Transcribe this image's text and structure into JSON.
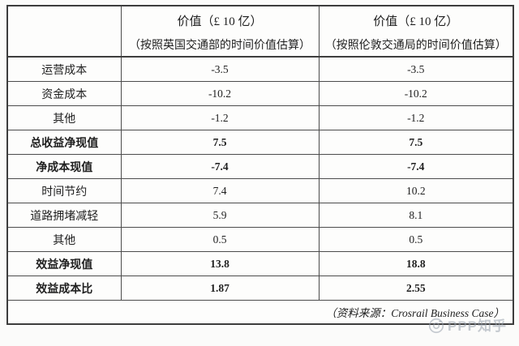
{
  "table": {
    "header": {
      "col_label": "",
      "col_dft": {
        "line1": "价值（£ 10 亿）",
        "line2": "（按照英国交通部的时间价值估算）"
      },
      "col_tfl": {
        "line1": "价值（£ 10 亿）",
        "line2": "（按照伦敦交通局的时间价值估算）"
      }
    },
    "rows": [
      {
        "label": "运营成本",
        "dft": "-3.5",
        "tfl": "-3.5",
        "bold": false
      },
      {
        "label": "资金成本",
        "dft": "-10.2",
        "tfl": "-10.2",
        "bold": false
      },
      {
        "label": "其他",
        "dft": "-1.2",
        "tfl": "-1.2",
        "bold": false
      },
      {
        "label": "总收益净现值",
        "dft": "7.5",
        "tfl": "7.5",
        "bold": true
      },
      {
        "label": "净成本现值",
        "dft": "-7.4",
        "tfl": "-7.4",
        "bold": true
      },
      {
        "label": "时间节约",
        "dft": "7.4",
        "tfl": "10.2",
        "bold": false
      },
      {
        "label": "道路拥堵减轻",
        "dft": "5.9",
        "tfl": "8.1",
        "bold": false
      },
      {
        "label": "其他",
        "dft": "0.5",
        "tfl": "0.5",
        "bold": false
      },
      {
        "label": "效益净现值",
        "dft": "13.8",
        "tfl": "18.8",
        "bold": true
      },
      {
        "label": "效益成本比",
        "dft": "1.87",
        "tfl": "2.55",
        "bold": true
      }
    ],
    "source": "（资料来源：Crosrail Business Case）"
  },
  "watermark": {
    "text": "PPP知乎"
  },
  "colors": {
    "border_outer": "#3d3d3d",
    "border_inner": "#4c4c4c",
    "text": "#1f1f1f",
    "watermark": "#98a0ac",
    "background": "#fbfbfa"
  }
}
